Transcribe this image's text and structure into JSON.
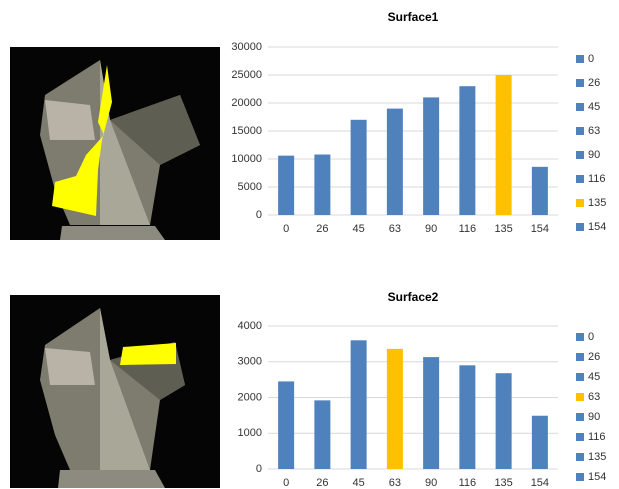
{
  "chart_data": [
    {
      "type": "bar",
      "title": "Surface1",
      "categories": [
        "0",
        "26",
        "45",
        "63",
        "90",
        "116",
        "135",
        "154"
      ],
      "values": [
        10600,
        10800,
        17000,
        19000,
        21000,
        23000,
        25000,
        8600
      ],
      "colors": [
        "#4f81bd",
        "#4f81bd",
        "#4f81bd",
        "#4f81bd",
        "#4f81bd",
        "#4f81bd",
        "#ffc000",
        "#4f81bd"
      ],
      "ylim": [
        0,
        30000
      ],
      "yticks": [
        0,
        5000,
        10000,
        15000,
        20000,
        25000,
        30000
      ],
      "grid": true,
      "legend": "right"
    },
    {
      "type": "bar",
      "title": "Surface2",
      "categories": [
        "0",
        "26",
        "45",
        "63",
        "90",
        "116",
        "135",
        "154"
      ],
      "values": [
        2450,
        1920,
        3600,
        3360,
        3130,
        2900,
        2680,
        1490
      ],
      "colors": [
        "#4f81bd",
        "#4f81bd",
        "#4f81bd",
        "#ffc000",
        "#4f81bd",
        "#4f81bd",
        "#4f81bd",
        "#4f81bd"
      ],
      "ylim": [
        0,
        4000
      ],
      "yticks": [
        0,
        1000,
        2000,
        3000,
        4000
      ],
      "grid": true,
      "legend": "right"
    }
  ]
}
